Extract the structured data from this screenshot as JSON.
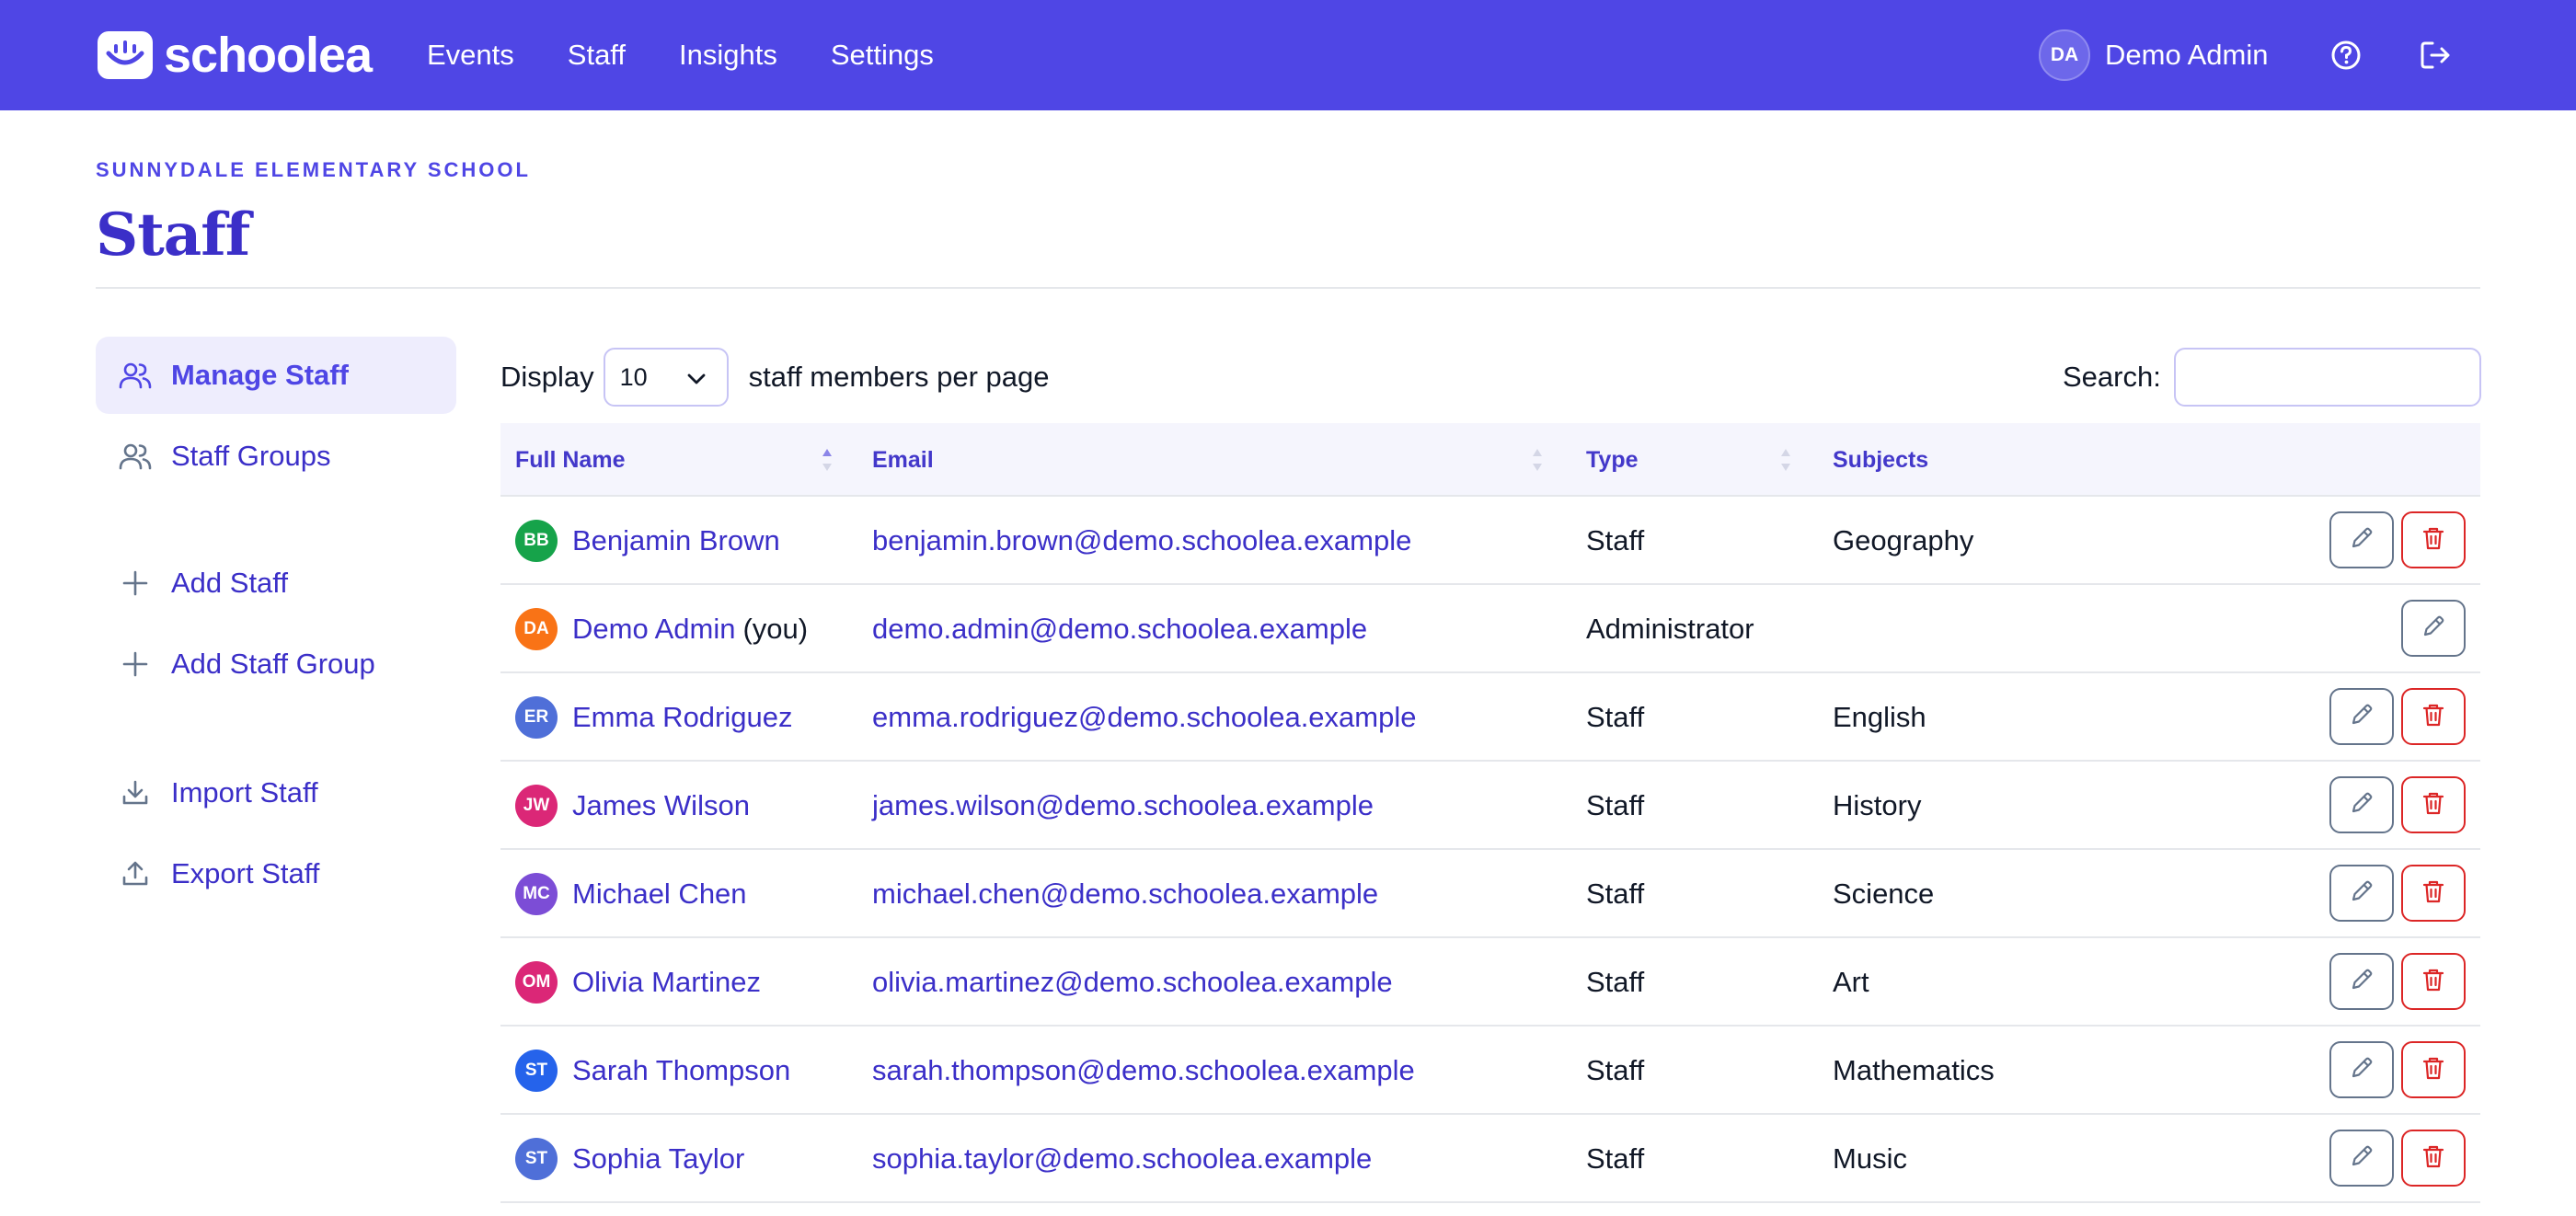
{
  "brand": {
    "name": "schoolea"
  },
  "nav": [
    "Events",
    "Staff",
    "Insights",
    "Settings"
  ],
  "user": {
    "initials": "DA",
    "name": "Demo Admin"
  },
  "header": {
    "school": "SUNNYDALE ELEMENTARY SCHOOL",
    "title": "Staff"
  },
  "sidebar": [
    {
      "label": "Manage Staff",
      "icon": "users-icon",
      "active": true
    },
    {
      "label": "Staff Groups",
      "icon": "users-icon",
      "active": false
    },
    {
      "label": "Add Staff",
      "icon": "plus-icon",
      "active": false
    },
    {
      "label": "Add Staff Group",
      "icon": "plus-icon",
      "active": false
    },
    {
      "label": "Import Staff",
      "icon": "download-icon",
      "active": false
    },
    {
      "label": "Export Staff",
      "icon": "upload-icon",
      "active": false
    }
  ],
  "controls": {
    "display_label": "Display",
    "page_size": "10",
    "per_page_label": "staff members per page",
    "search_label": "Search:",
    "search_value": ""
  },
  "table": {
    "columns": [
      "Full Name",
      "Email",
      "Type",
      "Subjects"
    ],
    "rows": [
      {
        "initials": "BB",
        "color": "#16a34a",
        "name": "Benjamin Brown",
        "suffix": "",
        "email": "benjamin.brown@demo.schoolea.example",
        "type": "Staff",
        "subjects": "Geography",
        "deletable": true
      },
      {
        "initials": "DA",
        "color": "#f97316",
        "name": "Demo Admin",
        "suffix": "(you)",
        "email": "demo.admin@demo.schoolea.example",
        "type": "Administrator",
        "subjects": "",
        "deletable": false
      },
      {
        "initials": "ER",
        "color": "#4f6fd8",
        "name": "Emma Rodriguez",
        "suffix": "",
        "email": "emma.rodriguez@demo.schoolea.example",
        "type": "Staff",
        "subjects": "English",
        "deletable": true
      },
      {
        "initials": "JW",
        "color": "#db2777",
        "name": "James Wilson",
        "suffix": "",
        "email": "james.wilson@demo.schoolea.example",
        "type": "Staff",
        "subjects": "History",
        "deletable": true
      },
      {
        "initials": "MC",
        "color": "#7c4dd6",
        "name": "Michael Chen",
        "suffix": "",
        "email": "michael.chen@demo.schoolea.example",
        "type": "Staff",
        "subjects": "Science",
        "deletable": true
      },
      {
        "initials": "OM",
        "color": "#db2777",
        "name": "Olivia Martinez",
        "suffix": "",
        "email": "olivia.martinez@demo.schoolea.example",
        "type": "Staff",
        "subjects": "Art",
        "deletable": true
      },
      {
        "initials": "ST",
        "color": "#2563eb",
        "name": "Sarah Thompson",
        "suffix": "",
        "email": "sarah.thompson@demo.schoolea.example",
        "type": "Staff",
        "subjects": "Mathematics",
        "deletable": true
      },
      {
        "initials": "ST",
        "color": "#4f6fd8",
        "name": "Sophia Taylor",
        "suffix": "",
        "email": "sophia.taylor@demo.schoolea.example",
        "type": "Staff",
        "subjects": "Music",
        "deletable": true
      }
    ]
  }
}
